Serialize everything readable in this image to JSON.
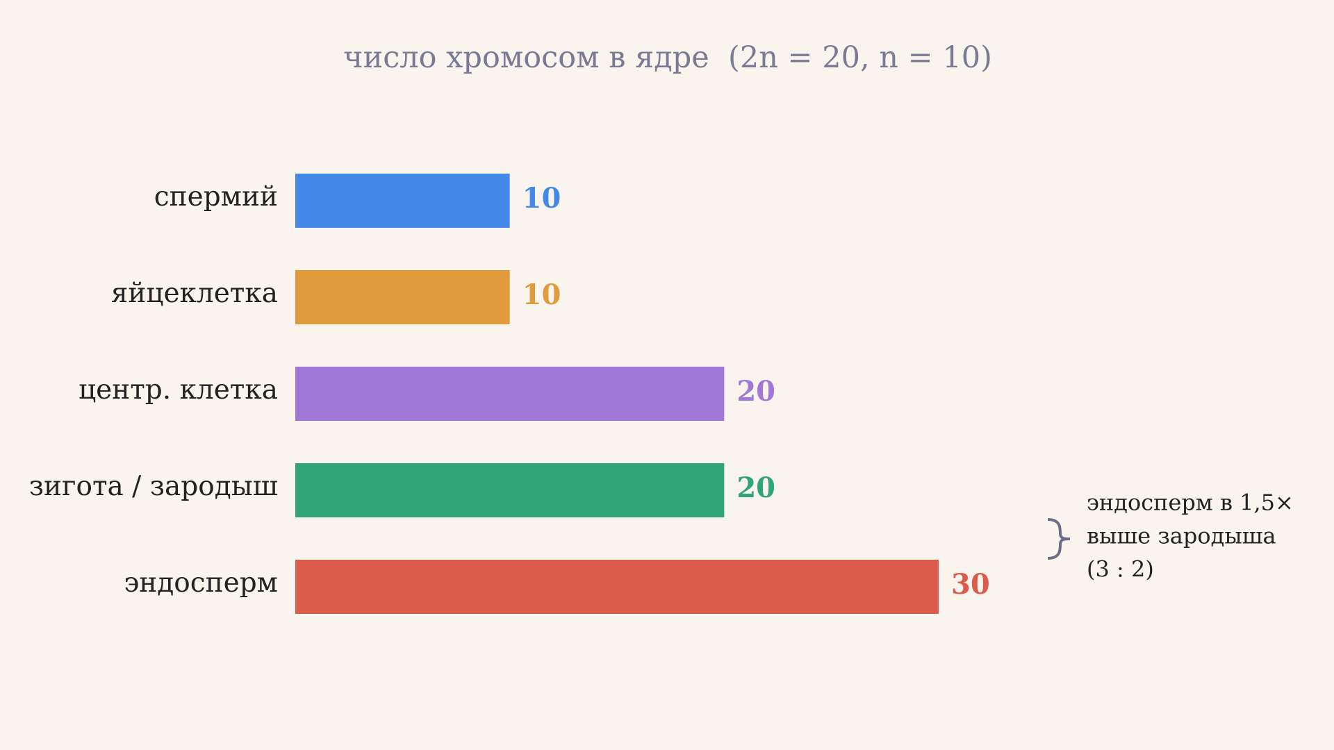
{
  "chart_data": {
    "type": "bar",
    "orientation": "horizontal",
    "title": "число хромосом в ядре  (2n = 20, n = 10)",
    "categories": [
      "спермий",
      "яйцеклетка",
      "центр. клетка",
      "зигота / зародыш",
      "эндосперм"
    ],
    "values": [
      10,
      10,
      20,
      20,
      30
    ],
    "colors": [
      "#4489e8",
      "#e19a3c",
      "#a178d8",
      "#31a577",
      "#dc5c4c"
    ],
    "annotation": [
      "эндосперм в 1,5×",
      "выше зародыша",
      "(3 : 2)"
    ]
  }
}
